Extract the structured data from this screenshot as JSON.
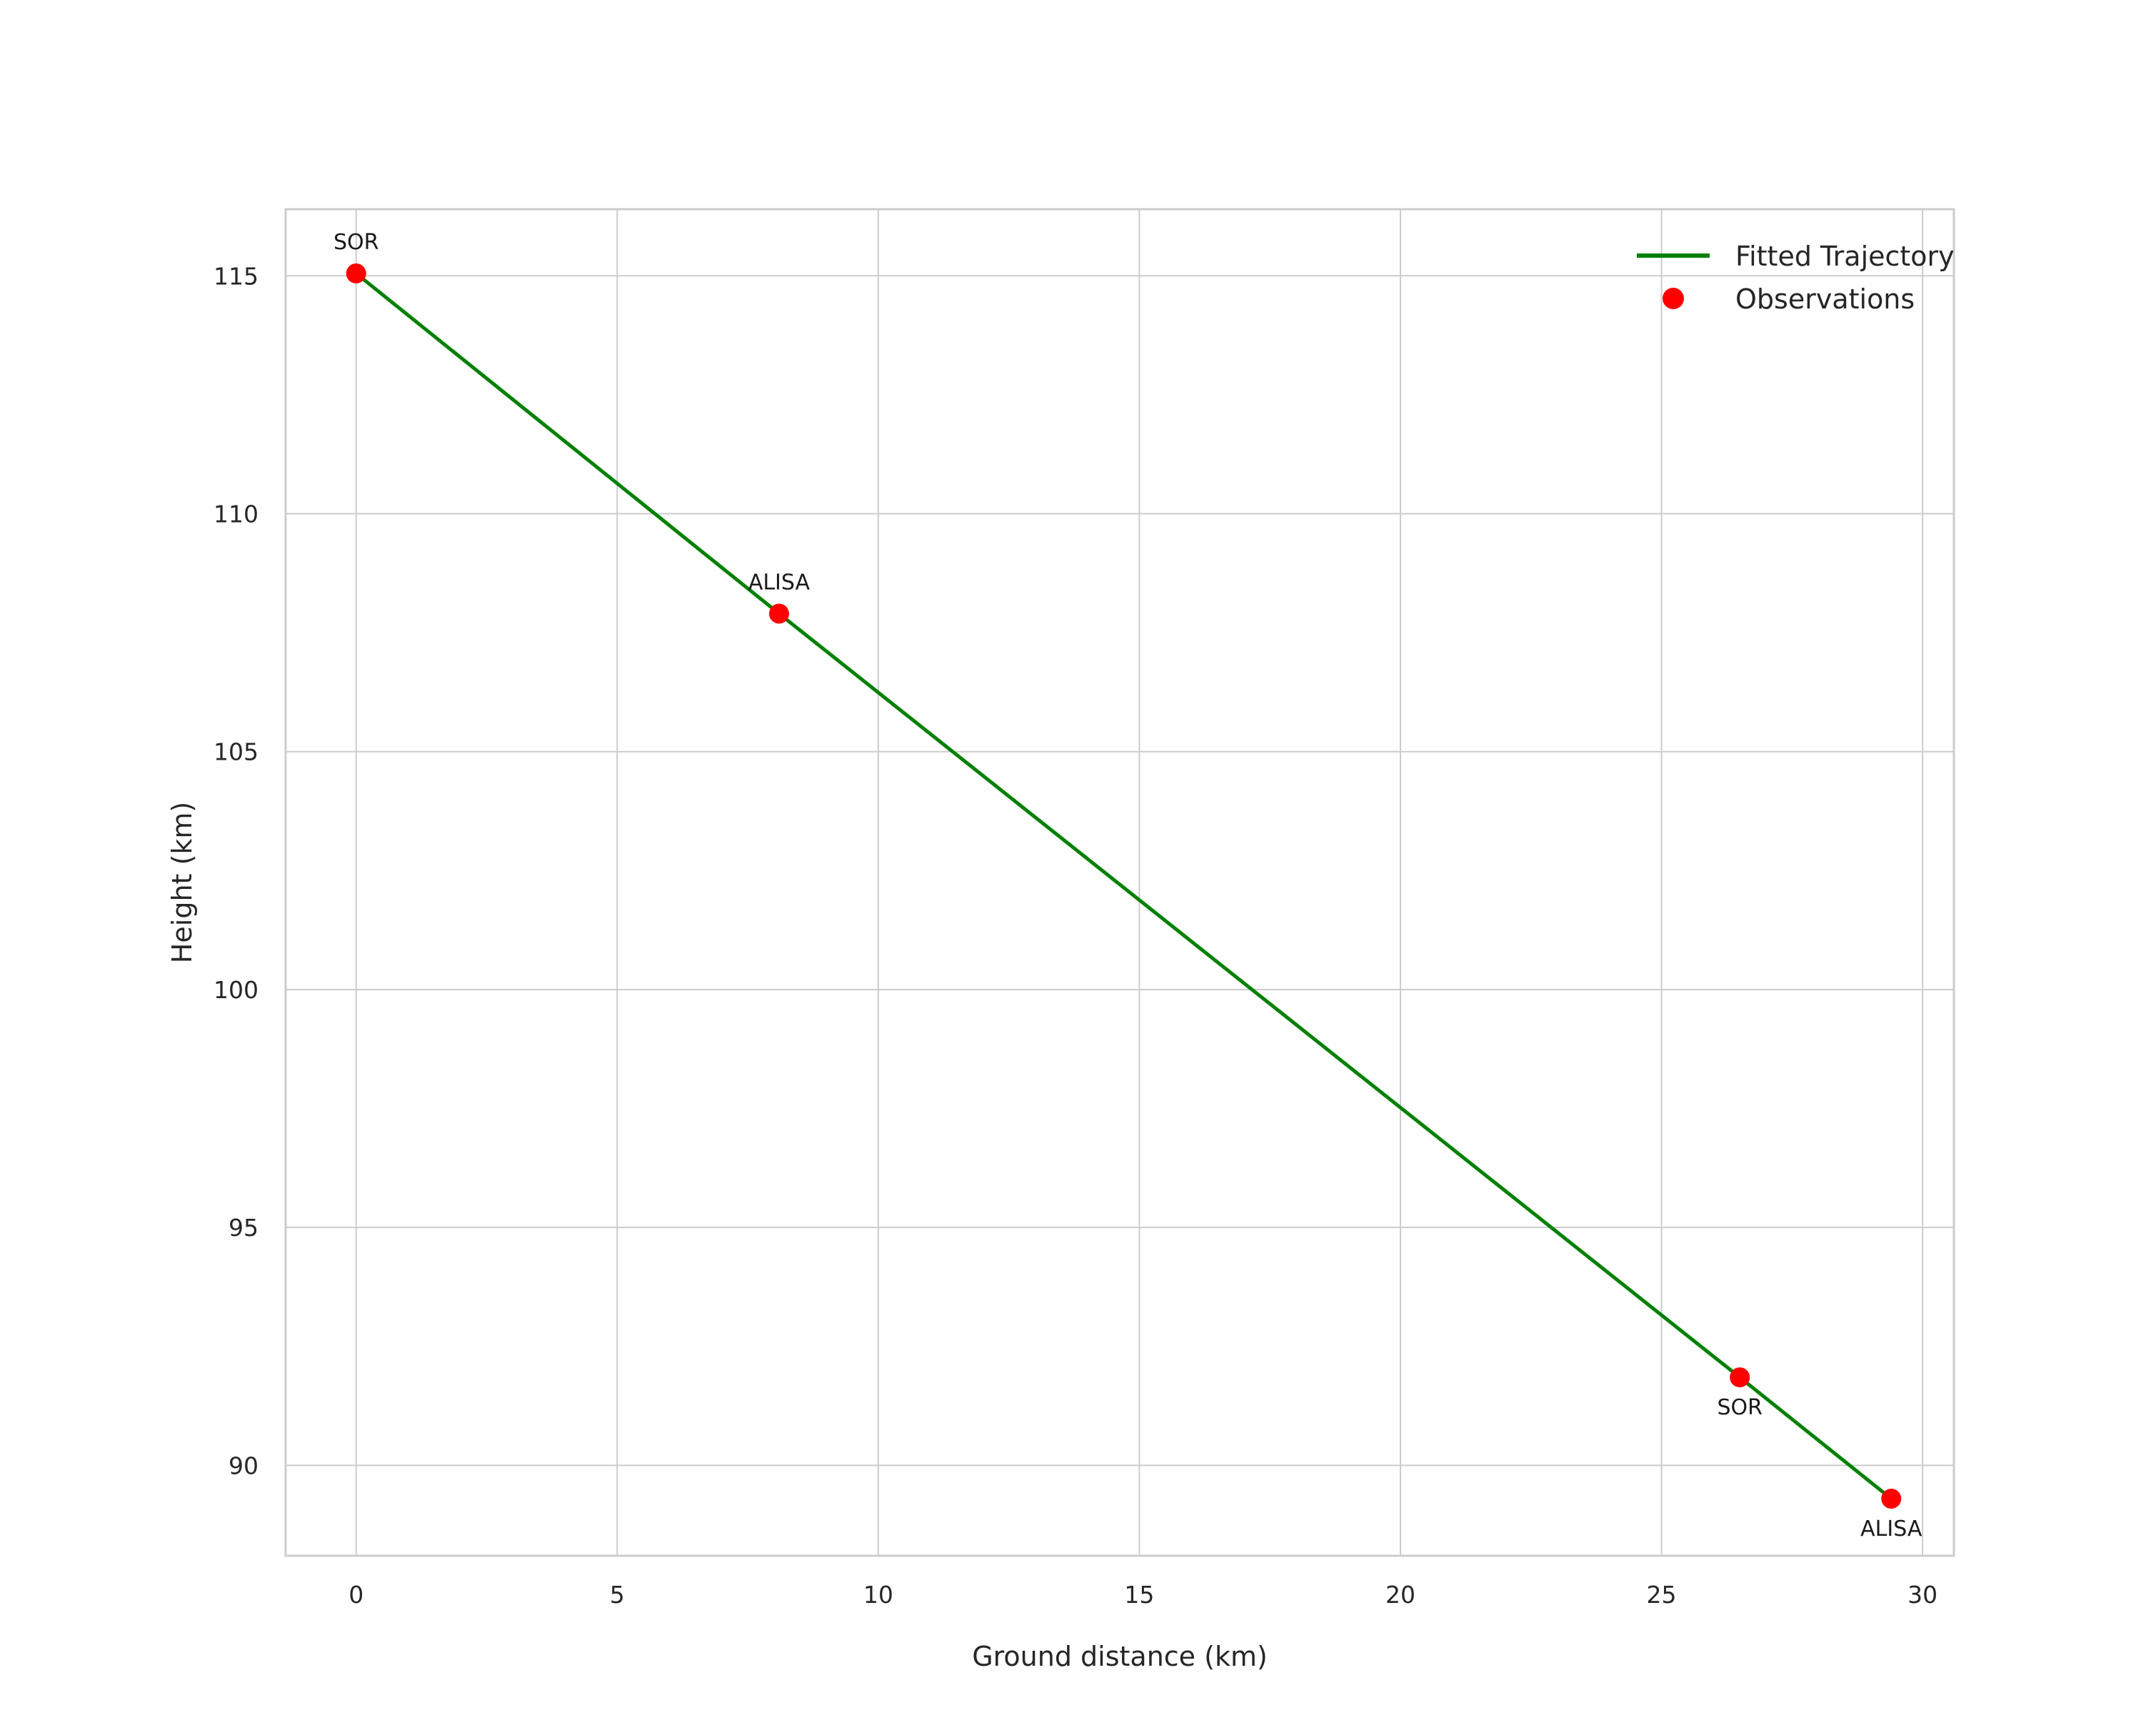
{
  "chart_data": {
    "type": "line",
    "title": "",
    "xlabel": "Ground distance (km)",
    "ylabel": "Height (km)",
    "xlim": [
      -1.35,
      30.6
    ],
    "ylim": [
      88.1,
      116.4
    ],
    "xticks": [
      0,
      5,
      10,
      15,
      20,
      25,
      30
    ],
    "yticks": [
      90,
      95,
      100,
      105,
      110,
      115
    ],
    "grid": true,
    "colors": {
      "trajectory": "#008000",
      "marker": "#ff0000",
      "grid": "#cccccc",
      "spine": "#cccccc",
      "text": "#262626"
    },
    "legend": {
      "position": "upper right",
      "entries": [
        {
          "label": "Fitted Trajectory",
          "type": "line",
          "color": "#008000"
        },
        {
          "label": "Observations",
          "type": "point",
          "color": "#ff0000"
        }
      ]
    },
    "series": [
      {
        "name": "Fitted Trajectory",
        "kind": "line",
        "color": "#008000",
        "points": [
          [
            0,
            115.05
          ],
          [
            8.1,
            107.9
          ],
          [
            26.5,
            91.85
          ],
          [
            29.4,
            89.3
          ]
        ]
      },
      {
        "name": "Observations",
        "kind": "scatter",
        "color": "#ff0000",
        "points": [
          {
            "x": 0,
            "y": 115.05,
            "label": "SOR",
            "label_pos": "above"
          },
          {
            "x": 8.1,
            "y": 107.9,
            "label": "ALISA",
            "label_pos": "above"
          },
          {
            "x": 26.5,
            "y": 91.85,
            "label": "SOR",
            "label_pos": "below"
          },
          {
            "x": 29.4,
            "y": 89.3,
            "label": "ALISA",
            "label_pos": "below"
          }
        ]
      }
    ]
  }
}
